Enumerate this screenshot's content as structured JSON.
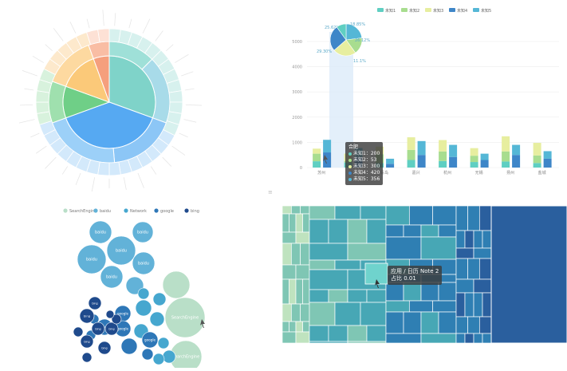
{
  "colors": {
    "sunburst": [
      "#fde1cb",
      "#f59f7d",
      "#fbc979",
      "#6fcf87",
      "#7fd3c9",
      "#56a9f2",
      "#bfe4f8"
    ],
    "bar": [
      "#5fcfc2",
      "#a8dd8f",
      "#e7ee9f",
      "#3e86c8",
      "#55b7d6"
    ],
    "treemap_scale": [
      "#bfe3bf",
      "#7fc6b4",
      "#47a7b5",
      "#2f7fb3",
      "#2a5f9e"
    ],
    "bubble": {
      "SearchEngine": "#b9dfc8",
      "baidu": "#62b2d8",
      "Network": "#46a7cf",
      "google": "#2e77b7",
      "bing": "#1f4a8c"
    },
    "cursor_blue": "#1565c0"
  },
  "bar_chart": {
    "legend": [
      "未知1",
      "未知2",
      "未知3",
      "未知4",
      "未知5"
    ],
    "yticks": [
      "5000",
      "4000",
      "3000",
      "2000",
      "1000",
      "0"
    ],
    "xlabels": [
      "苏州",
      "合肥",
      "青岛",
      "嘉兴",
      "杭州",
      "无锡",
      "扬州",
      "盐城"
    ],
    "tooltip": {
      "title": "合肥",
      "rows": [
        "未知1：200",
        "未知2：53",
        "未知3：300",
        "未知4：420",
        "未知5：356"
      ]
    }
  },
  "pie_labels": [
    "25.62%",
    "18.85%",
    "26.12%",
    "29.30%",
    "11.1%"
  ],
  "bubble_legend": [
    "SearchEngine",
    "baidu",
    "Network",
    "google",
    "bing"
  ],
  "bubble_labels": {
    "baidu": "baidu",
    "google": "google",
    "bing": "bing",
    "SearchEngine": "SearchEngine",
    "Network": "Network"
  },
  "treemap_tooltip": {
    "line1": "应用 / 日历 Note 2",
    "line2": "占比 0.01"
  },
  "chart_data": [
    {
      "type": "bar",
      "title": "",
      "categories": [
        "苏州",
        "合肥",
        "青岛",
        "嘉兴",
        "杭州",
        "无锡",
        "扬州",
        "盐城"
      ],
      "ylim": [
        0,
        5000
      ],
      "series": [
        {
          "name": "未知1",
          "values": [
            250,
            200,
            180,
            300,
            260,
            220,
            240,
            180
          ]
        },
        {
          "name": "未知2",
          "values": [
            300,
            53,
            350,
            400,
            380,
            250,
            400,
            300
          ]
        },
        {
          "name": "未知3",
          "values": [
            200,
            300,
            300,
            500,
            450,
            300,
            600,
            500
          ]
        },
        {
          "name": "未知4",
          "values": [
            600,
            420,
            150,
            500,
            420,
            300,
            500,
            350
          ]
        },
        {
          "name": "未知5",
          "values": [
            500,
            356,
            200,
            550,
            480,
            250,
            400,
            300
          ]
        }
      ]
    },
    {
      "type": "pie",
      "labels": [
        "25.62%",
        "18.85%",
        "26.12%",
        "29.30%",
        "11.1%"
      ],
      "values": [
        25.62,
        18.85,
        26.12,
        29.3,
        11.1
      ]
    }
  ]
}
